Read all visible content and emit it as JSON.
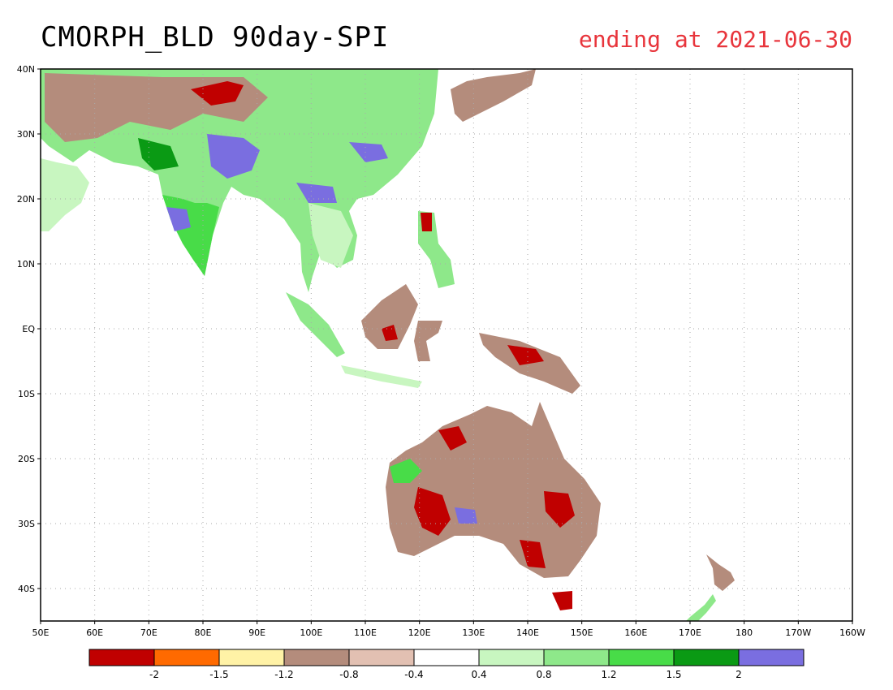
{
  "title": {
    "main": "CMORPH_BLD 90day-SPI",
    "ending": "ending at 2021-06-30"
  },
  "colors": {
    "title_ending": "#e8353c",
    "classes": [
      "#c00000",
      "#ff6a00",
      "#fff2a6",
      "#b48c7c",
      "#e2c0b2",
      "#ffffff",
      "#c8f6c0",
      "#8ee88a",
      "#48dc48",
      "#0a9a14",
      "#7a6ee0"
    ]
  },
  "map": {
    "lon_range": [
      50,
      200
    ],
    "lat_range": [
      -45,
      40
    ],
    "lon_ticks": [
      {
        "lon": 50,
        "label": "50E"
      },
      {
        "lon": 60,
        "label": "60E"
      },
      {
        "lon": 70,
        "label": "70E"
      },
      {
        "lon": 80,
        "label": "80E"
      },
      {
        "lon": 90,
        "label": "90E"
      },
      {
        "lon": 100,
        "label": "100E"
      },
      {
        "lon": 110,
        "label": "110E"
      },
      {
        "lon": 120,
        "label": "120E"
      },
      {
        "lon": 130,
        "label": "130E"
      },
      {
        "lon": 140,
        "label": "140E"
      },
      {
        "lon": 150,
        "label": "150E"
      },
      {
        "lon": 160,
        "label": "160E"
      },
      {
        "lon": 170,
        "label": "170E"
      },
      {
        "lon": 180,
        "label": "180"
      },
      {
        "lon": 190,
        "label": "170W"
      },
      {
        "lon": 200,
        "label": "160W"
      }
    ],
    "lat_ticks": [
      {
        "lat": 40,
        "label": "40N"
      },
      {
        "lat": 30,
        "label": "30N"
      },
      {
        "lat": 20,
        "label": "20N"
      },
      {
        "lat": 10,
        "label": "10N"
      },
      {
        "lat": 0,
        "label": "EQ"
      },
      {
        "lat": -10,
        "label": "10S"
      },
      {
        "lat": -20,
        "label": "20S"
      },
      {
        "lat": -30,
        "label": "30S"
      },
      {
        "lat": -40,
        "label": "40S"
      }
    ],
    "grid": true
  },
  "legend": {
    "labels": [
      "-2",
      "-1.5",
      "-1.2",
      "-0.8",
      "-0.4",
      "0.4",
      "0.8",
      "1.2",
      "1.5",
      "2"
    ]
  }
}
